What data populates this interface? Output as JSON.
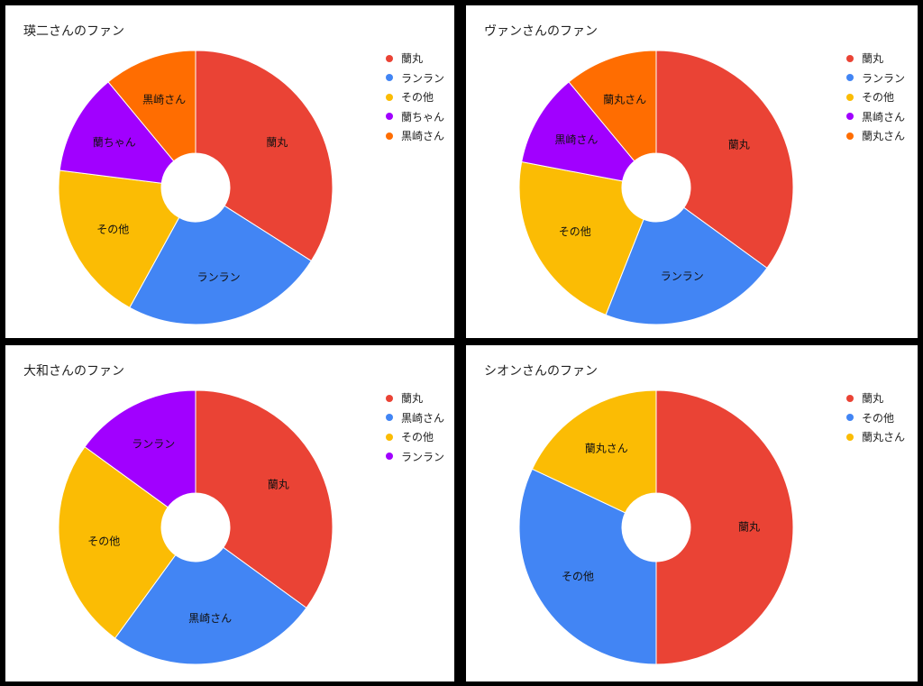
{
  "charts": [
    {
      "title": "瑛二さんのファン",
      "legend": [
        {
          "label": "蘭丸",
          "color": "#EA4335"
        },
        {
          "label": "ランラン",
          "color": "#4285F4"
        },
        {
          "label": "その他",
          "color": "#FBBC04"
        },
        {
          "label": "蘭ちゃん",
          "color": "#A100FF"
        },
        {
          "label": "黒崎さん",
          "color": "#FF6D01"
        }
      ]
    },
    {
      "title": "ヴァンさんのファン",
      "legend": [
        {
          "label": "蘭丸",
          "color": "#EA4335"
        },
        {
          "label": "ランラン",
          "color": "#4285F4"
        },
        {
          "label": "その他",
          "color": "#FBBC04"
        },
        {
          "label": "黒崎さん",
          "color": "#A100FF"
        },
        {
          "label": "蘭丸さん",
          "color": "#FF6D01"
        }
      ]
    },
    {
      "title": "大和さんのファン",
      "legend": [
        {
          "label": "蘭丸",
          "color": "#EA4335"
        },
        {
          "label": "黒崎さん",
          "color": "#4285F4"
        },
        {
          "label": "その他",
          "color": "#FBBC04"
        },
        {
          "label": "ランラン",
          "color": "#A100FF"
        }
      ]
    },
    {
      "title": "シオンさんのファン",
      "legend": [
        {
          "label": "蘭丸",
          "color": "#EA4335"
        },
        {
          "label": "その他",
          "color": "#4285F4"
        },
        {
          "label": "蘭丸さん",
          "color": "#FBBC04"
        }
      ]
    }
  ],
  "chart_data": [
    {
      "type": "pie",
      "title": "瑛二さんのファン",
      "donut": true,
      "legend_position": "right",
      "categories": [
        "蘭丸",
        "ランラン",
        "その他",
        "蘭ちゃん",
        "黒崎さん"
      ],
      "values": [
        34,
        24,
        19,
        12,
        11
      ],
      "colors": [
        "#EA4335",
        "#4285F4",
        "#FBBC04",
        "#A100FF",
        "#FF6D01"
      ]
    },
    {
      "type": "pie",
      "title": "ヴァンさんのファン",
      "donut": true,
      "legend_position": "right",
      "categories": [
        "蘭丸",
        "ランラン",
        "その他",
        "黒崎さん",
        "蘭丸さん"
      ],
      "values": [
        35,
        21,
        22,
        11,
        11
      ],
      "colors": [
        "#EA4335",
        "#4285F4",
        "#FBBC04",
        "#A100FF",
        "#FF6D01"
      ]
    },
    {
      "type": "pie",
      "title": "大和さんのファン",
      "donut": true,
      "legend_position": "right",
      "categories": [
        "蘭丸",
        "黒崎さん",
        "その他",
        "ランラン"
      ],
      "values": [
        35,
        25,
        25,
        15
      ],
      "colors": [
        "#EA4335",
        "#4285F4",
        "#FBBC04",
        "#A100FF"
      ]
    },
    {
      "type": "pie",
      "title": "シオンさんのファン",
      "donut": true,
      "legend_position": "right",
      "categories": [
        "蘭丸",
        "その他",
        "蘭丸さん"
      ],
      "values": [
        50,
        32,
        18
      ],
      "colors": [
        "#EA4335",
        "#4285F4",
        "#FBBC04"
      ]
    }
  ]
}
